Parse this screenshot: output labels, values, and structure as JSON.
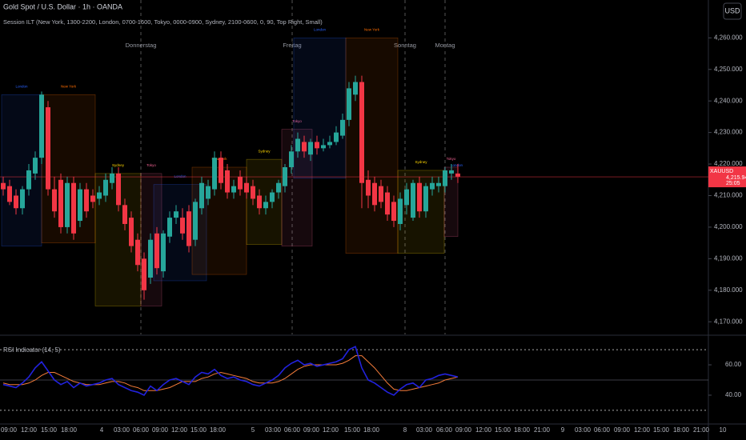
{
  "header": {
    "symbol": "Gold Spot / U.S. Dollar · 1h · OANDA",
    "indicator": "Session ILT (New York, 1300-2200, London, 0700-1600, Tokyo, 0000-0900, Sydney, 2100-0600, 0, 90, Top Right, Small)",
    "currency_button": "USD"
  },
  "chart_data": [
    {
      "type": "candlestick",
      "symbol_tag": "XAUUSD",
      "last_price": {
        "value": 4215.94,
        "label": "4,215.940"
      },
      "countdown": "25:05",
      "up_color": "#26a69a",
      "down_color": "#f23645",
      "open": [
        4214,
        4213,
        4210,
        4206,
        4212,
        4217,
        4222,
        4238,
        4212,
        4215,
        4200,
        4214,
        4202,
        4212,
        4210,
        4209,
        4210,
        4214,
        4217,
        4207,
        4203,
        4196,
        4190,
        4184,
        4198,
        4186,
        4197,
        4203,
        4203,
        4205,
        4196,
        4206,
        4209,
        4212,
        4222,
        4218,
        4211,
        4216,
        4214,
        4213,
        4210,
        4206,
        4208,
        4211,
        4213,
        4219,
        4224,
        4227,
        4223,
        4227,
        4225,
        4226,
        4227,
        4229,
        4234,
        4242,
        4246,
        4215,
        4214,
        4213,
        4211,
        4208,
        4201,
        4207,
        4203,
        4214,
        4205,
        4212,
        4213,
        4213,
        4217,
        4217
      ],
      "high": [
        4216,
        4215,
        4212,
        4213,
        4220,
        4224,
        4243,
        4240,
        4216,
        4217,
        4216,
        4216,
        4214,
        4214,
        4212,
        4213,
        4217,
        4219,
        4219,
        4209,
        4205,
        4198,
        4192,
        4198,
        4200,
        4199,
        4205,
        4207,
        4206,
        4207,
        4209,
        4216,
        4215,
        4224,
        4224,
        4220,
        4215,
        4218,
        4216,
        4215,
        4212,
        4210,
        4212,
        4215,
        4220,
        4226,
        4230,
        4229,
        4228,
        4229,
        4228,
        4229,
        4232,
        4236,
        4246,
        4248,
        4248,
        4218,
        4216,
        4215,
        4213,
        4210,
        4211,
        4214,
        4215,
        4216,
        4214,
        4216,
        4216,
        4219,
        4220,
        4220
      ],
      "low": [
        4210,
        4207,
        4204,
        4204,
        4210,
        4215,
        4220,
        4210,
        4203,
        4198,
        4198,
        4196,
        4200,
        4203,
        4206,
        4207,
        4208,
        4212,
        4205,
        4199,
        4192,
        4186,
        4177,
        4182,
        4185,
        4184,
        4195,
        4201,
        4196,
        4192,
        4194,
        4204,
        4207,
        4210,
        4212,
        4209,
        4209,
        4210,
        4209,
        4207,
        4204,
        4204,
        4206,
        4209,
        4211,
        4217,
        4222,
        4222,
        4221,
        4223,
        4224,
        4225,
        4226,
        4228,
        4232,
        4240,
        4206,
        4206,
        4205,
        4206,
        4202,
        4200,
        4199,
        4204,
        4202,
        4203,
        4203,
        4210,
        4211,
        4211,
        4215,
        4214
      ],
      "close": [
        4212,
        4208,
        4206,
        4212,
        4218,
        4222,
        4242,
        4212,
        4205,
        4200,
        4214,
        4198,
        4212,
        4205,
        4208,
        4211,
        4215,
        4217,
        4207,
        4201,
        4194,
        4188,
        4180,
        4196,
        4187,
        4198,
        4203,
        4205,
        4198,
        4194,
        4208,
        4214,
        4213,
        4222,
        4214,
        4211,
        4213,
        4212,
        4211,
        4209,
        4206,
        4208,
        4211,
        4214,
        4219,
        4224,
        4228,
        4224,
        4227,
        4225,
        4226,
        4227,
        4230,
        4234,
        4244,
        4246,
        4214,
        4210,
        4207,
        4208,
        4204,
        4202,
        4209,
        4212,
        4214,
        4205,
        4213,
        4214,
        4214,
        4218,
        4218,
        4216
      ],
      "ylim": [
        4166,
        4272
      ],
      "yticks": [
        {
          "value": 4170,
          "label": "4,170.000"
        },
        {
          "value": 4180,
          "label": "4,180.000"
        },
        {
          "value": 4190,
          "label": "4,190.000"
        },
        {
          "value": 4200,
          "label": "4,200.000"
        },
        {
          "value": 4210,
          "label": "4,210.000"
        },
        {
          "value": 4220,
          "label": "4,220.000"
        },
        {
          "value": 4230,
          "label": "4,230.000"
        },
        {
          "value": 4240,
          "label": "4,240.000"
        },
        {
          "value": 4250,
          "label": "4,250.000"
        },
        {
          "value": 4260,
          "label": "4,260.000"
        }
      ],
      "day_labels": [
        "Donnerstag",
        "Freitag",
        "Sonntag",
        "Montag"
      ],
      "sessions": [
        {
          "label": "London",
          "color": "#2962ff",
          "high": 4242,
          "low": 4194
        },
        {
          "label": "New York",
          "color": "#ff6d00",
          "high": 4242,
          "low": 4195
        },
        {
          "label": "Sydney",
          "color": "#ffd600",
          "high": 4217,
          "low": 4175
        },
        {
          "label": "Tokyo",
          "color": "#f06292",
          "high": 4217,
          "low": 4175
        },
        {
          "label": "London",
          "color": "#2962ff",
          "high": 4213.5,
          "low": 4183
        },
        {
          "label": "New York",
          "color": "#ff6d00",
          "high": 4219,
          "low": 4185
        },
        {
          "label": "Sydney",
          "color": "#ffd600",
          "high": 4221.5,
          "low": 4194.5
        },
        {
          "label": "Tokyo",
          "color": "#f06292",
          "high": 4231,
          "low": 4194
        },
        {
          "label": "London",
          "color": "#2962ff",
          "high": 4260,
          "low": 4215.5
        },
        {
          "label": "New York",
          "color": "#ff6d00",
          "high": 4260,
          "low": 4191.7
        },
        {
          "label": "Sydney",
          "color": "#ffd600",
          "high": 4218,
          "low": 4191.7
        },
        {
          "label": "Tokyo",
          "color": "#f06292",
          "high": 4219,
          "low": 4197
        },
        {
          "label": "London",
          "color": "#2962ff",
          "high": 4217,
          "low": 4215
        }
      ]
    },
    {
      "type": "line",
      "title": "RSI Indicator (14, 5)",
      "series": [
        {
          "color": "#2222dd",
          "values": [
            47,
            46,
            45,
            48,
            52,
            58,
            62,
            56,
            50,
            47,
            49,
            45,
            48,
            46,
            47,
            48,
            50,
            51,
            47,
            45,
            43,
            42,
            40,
            46,
            43,
            47,
            50,
            51,
            49,
            47,
            52,
            55,
            54,
            57,
            53,
            51,
            52,
            50,
            49,
            47,
            46,
            48,
            50,
            53,
            58,
            61,
            63,
            60,
            61,
            59,
            60,
            61,
            62,
            64,
            70,
            72,
            58,
            50,
            48,
            45,
            42,
            40,
            44,
            47,
            48,
            45,
            50,
            51,
            53,
            54,
            53,
            52
          ]
        },
        {
          "color": "#f57c3a",
          "values": [
            48,
            47,
            47,
            47,
            48,
            50,
            53,
            55,
            55,
            53,
            51,
            49,
            48,
            47,
            47,
            47,
            48,
            49,
            49,
            48,
            46,
            45,
            43,
            43,
            43,
            44,
            45,
            47,
            49,
            49,
            49,
            51,
            52,
            54,
            55,
            54,
            53,
            52,
            51,
            49,
            48,
            48,
            48,
            49,
            51,
            54,
            57,
            59,
            60,
            60,
            60,
            60,
            60,
            61,
            63,
            66,
            66,
            62,
            58,
            53,
            48,
            44,
            43,
            43,
            44,
            45,
            46,
            47,
            48,
            50,
            51,
            52
          ]
        }
      ],
      "ylim": [
        21,
        79
      ],
      "yticks": [
        {
          "value": 40,
          "label": "40.00"
        },
        {
          "value": 60,
          "label": "60.00"
        }
      ],
      "bands": [
        70,
        30
      ],
      "midline": 50,
      "x_tick_labels": [
        "09:00",
        "12:00",
        "15:00",
        "18:00",
        "4",
        "03:00",
        "06:00",
        "09:00",
        "12:00",
        "15:00",
        "18:00",
        "5",
        "03:00",
        "06:00",
        "09:00",
        "12:00",
        "15:00",
        "18:00",
        "8",
        "03:00",
        "06:00",
        "09:00",
        "12:00",
        "15:00",
        "18:00",
        "21:00",
        "9",
        "03:00",
        "06:00",
        "09:00",
        "12:00",
        "15:00",
        "18:00",
        "21:00",
        "10"
      ]
    }
  ]
}
